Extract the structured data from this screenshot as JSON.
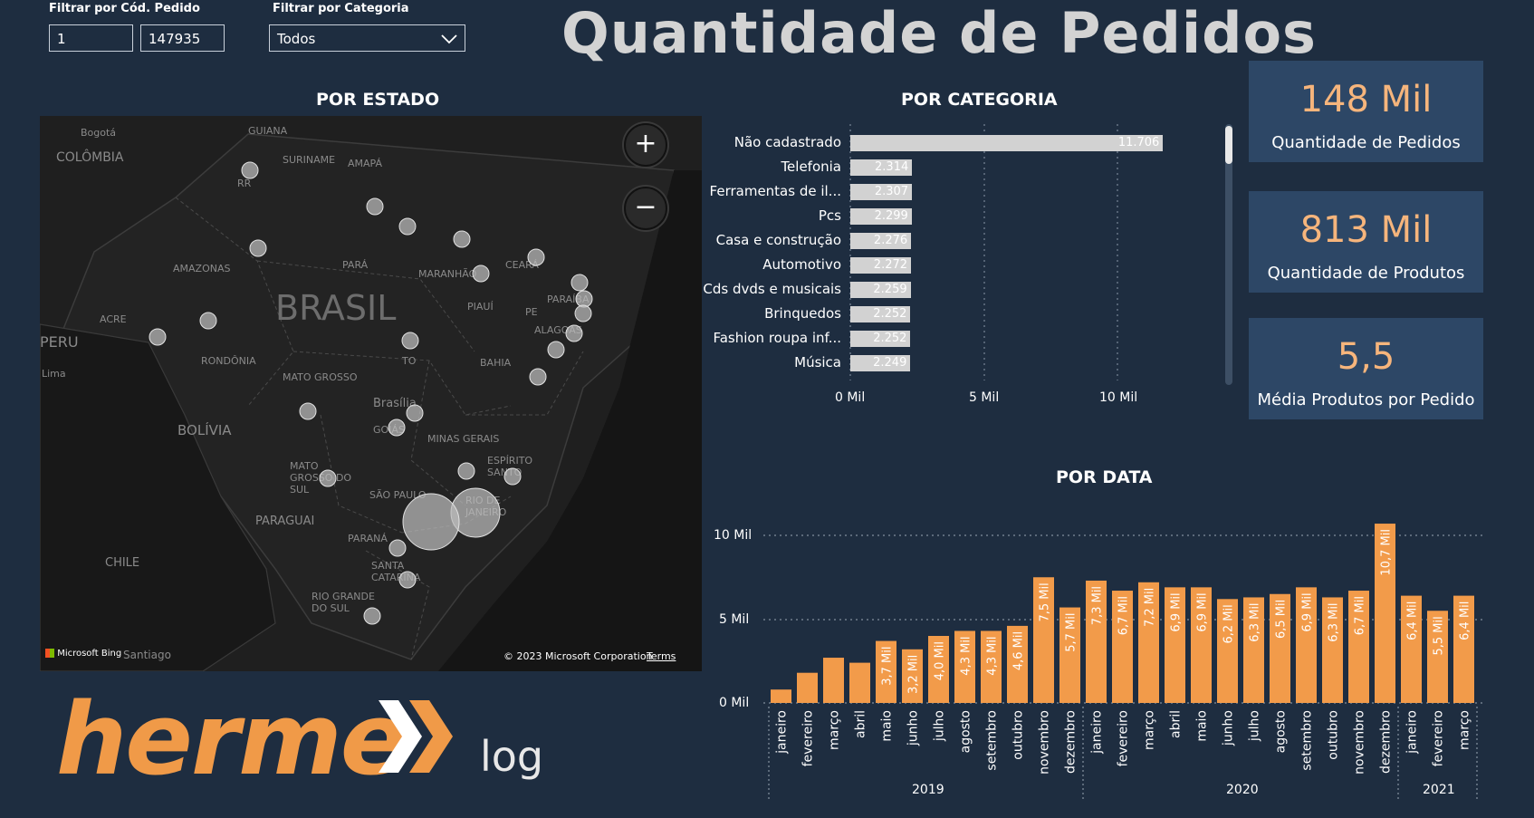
{
  "filters": {
    "order_code_label": "Filtrar por Cód. Pedido",
    "order_min": "1",
    "order_max": "147935",
    "category_label": "Filtrar por Categoria",
    "category_value": "Todos"
  },
  "title": "Quantidade de Pedidos",
  "map": {
    "title": "POR ESTADO",
    "zoom_in": "+",
    "zoom_out": "−",
    "bing_label": "Microsoft Bing",
    "copyright": "© 2023 Microsoft Corporation",
    "terms": "Terms",
    "labels": [
      "Bogotá",
      "COLÔMBIA",
      "GUIANA",
      "SURINAME",
      "AMAPÁ",
      "RR",
      "AMAZONAS",
      "PARÁ",
      "MARANHÃO",
      "CEARÁ",
      "PIAUÍ",
      "PARAÍBA",
      "PE",
      "ALAGOAS",
      "BRASIL",
      "ACRE",
      "PERU",
      "RONDÔNIA",
      "TO",
      "BAHIA",
      "MATO GROSSO",
      "Lima",
      "Brasília",
      "GOIÁS",
      "MINAS GERAIS",
      "BOLÍVIA",
      "ESPÍRITO SANTO",
      "MATO GROSSO DO SUL",
      "SÃO PAULO",
      "RIO DE JANEIRO",
      "PARAGUAI",
      "PARANÁ",
      "SANTA CATARINA",
      "CHILE",
      "RIO GRANDE DO SUL",
      "Santiago"
    ]
  },
  "category": {
    "title": "POR CATEGORIA",
    "ticks": [
      "0 Mil",
      "5 Mil",
      "10 Mil"
    ]
  },
  "date": {
    "title": "POR DATA",
    "ticks": [
      "0 Mil",
      "5 Mil",
      "10 Mil"
    ],
    "years": [
      "2019",
      "2020",
      "2021"
    ]
  },
  "kpis": [
    {
      "value": "148 Mil",
      "caption": "Quantidade de Pedidos"
    },
    {
      "value": "813 Mil",
      "caption": "Quantidade de Produtos"
    },
    {
      "value": "5,5",
      "caption": "Média Produtos por Pedido"
    }
  ],
  "logo": {
    "main": "herme",
    "suffix": "log"
  },
  "colors": {
    "background": "#1e2d40",
    "bar_orange": "#f29b4a",
    "bar_gray": "#d2d2d2",
    "kpi_bg": "#2d4766",
    "kpi_value": "#f6b57c"
  },
  "chart_data": [
    {
      "type": "bar",
      "orientation": "horizontal",
      "title": "POR CATEGORIA",
      "categories": [
        "Não cadastrado",
        "Telefonia",
        "Ferramentas de il...",
        "Pcs",
        "Casa e construção",
        "Automotivo",
        "Cds dvds e musicais",
        "Brinquedos",
        "Fashion roupa inf...",
        "Música"
      ],
      "values": [
        11706,
        2314,
        2307,
        2299,
        2276,
        2272,
        2259,
        2252,
        2252,
        2249
      ],
      "value_labels": [
        "11.706",
        "2.314",
        "2.307",
        "2.299",
        "2.276",
        "2.272",
        "2.259",
        "2.252",
        "2.252",
        "2.249"
      ],
      "xlim": [
        0,
        12000
      ],
      "xticks": [
        "0 Mil",
        "5 Mil",
        "10 Mil"
      ]
    },
    {
      "type": "bar",
      "title": "POR DATA",
      "categories": [
        "janeiro",
        "fevereiro",
        "março",
        "abril",
        "maio",
        "junho",
        "julho",
        "agosto",
        "setembro",
        "outubro",
        "novembro",
        "dezembro",
        "janeiro",
        "fevereiro",
        "março",
        "abril",
        "maio",
        "junho",
        "julho",
        "agosto",
        "setembro",
        "outubro",
        "novembro",
        "dezembro",
        "janeiro",
        "fevereiro",
        "março"
      ],
      "years": [
        "2019",
        "2019",
        "2019",
        "2019",
        "2019",
        "2019",
        "2019",
        "2019",
        "2019",
        "2019",
        "2019",
        "2019",
        "2020",
        "2020",
        "2020",
        "2020",
        "2020",
        "2020",
        "2020",
        "2020",
        "2020",
        "2020",
        "2020",
        "2020",
        "2021",
        "2021",
        "2021"
      ],
      "values": [
        0.8,
        1.8,
        2.7,
        2.4,
        3.7,
        3.2,
        4.0,
        4.3,
        4.3,
        4.6,
        7.5,
        5.7,
        7.3,
        6.7,
        7.2,
        6.9,
        6.9,
        6.2,
        6.3,
        6.5,
        6.9,
        6.3,
        6.7,
        10.7,
        6.4,
        5.5,
        6.4
      ],
      "value_labels": [
        "",
        "",
        "",
        "",
        "3,7 Mil",
        "3,2 Mil",
        "4,0 Mil",
        "4,3 Mil",
        "4,3 Mil",
        "4,6 Mil",
        "7,5 Mil",
        "5,7 Mil",
        "7,3 Mil",
        "6,7 Mil",
        "7,2 Mil",
        "6,9 Mil",
        "6,9 Mil",
        "6,2 Mil",
        "6,3 Mil",
        "6,5 Mil",
        "6,9 Mil",
        "6,3 Mil",
        "6,7 Mil",
        "10,7 Mil",
        "6,4 Mil",
        "5,5 Mil",
        "6,4 Mil"
      ],
      "unit": "Mil",
      "ylim": [
        0,
        11
      ],
      "yticks": [
        "0 Mil",
        "5 Mil",
        "10 Mil"
      ],
      "grid": true
    },
    {
      "type": "scatter",
      "title": "POR ESTADO",
      "marker": "bubble"
    }
  ]
}
